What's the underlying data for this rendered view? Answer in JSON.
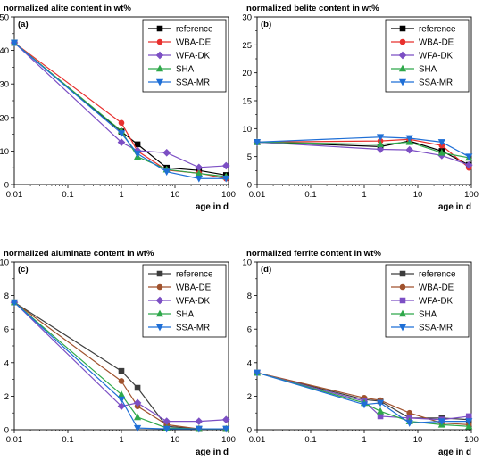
{
  "chart_data": [
    {
      "type": "line",
      "title": "normalized alite content in wt%",
      "panel_label": "(a)",
      "xlabel": "age in d",
      "ylabel": "",
      "xscale": "log",
      "xlim": [
        0.01,
        100
      ],
      "ylim": [
        0,
        50
      ],
      "xticks": [
        "0.01",
        "0.1",
        "1",
        "10",
        "100"
      ],
      "yticks": [
        "0",
        "10",
        "20",
        "30",
        "40",
        "50"
      ],
      "legend_position": "top-right",
      "series": [
        {
          "name": "reference",
          "color": "#000000",
          "marker": "square",
          "x": [
            0.01,
            1,
            2,
            7,
            28,
            90
          ],
          "y": [
            42.3,
            15.8,
            12.0,
            5.0,
            4.2,
            2.8
          ]
        },
        {
          "name": "WBA-DE",
          "color": "#e8302e",
          "marker": "circle",
          "x": [
            0.01,
            1,
            2,
            7,
            28,
            90
          ],
          "y": [
            42.3,
            18.4,
            10.0,
            4.3,
            3.4,
            1.8
          ]
        },
        {
          "name": "WFA-DK",
          "color": "#7c4fc4",
          "marker": "diamond",
          "x": [
            0.01,
            1,
            2,
            7,
            28,
            90
          ],
          "y": [
            42.3,
            12.6,
            10.1,
            9.5,
            5.1,
            5.6
          ]
        },
        {
          "name": "SHA",
          "color": "#2ea84a",
          "marker": "triangle-up",
          "x": [
            0.01,
            1,
            2,
            7,
            28,
            90
          ],
          "y": [
            42.3,
            16.0,
            8.3,
            4.5,
            3.3,
            2.4
          ]
        },
        {
          "name": "SSA-MR",
          "color": "#1f6fd6",
          "marker": "triangle-down",
          "x": [
            0.01,
            1,
            2,
            7,
            28,
            90
          ],
          "y": [
            42.3,
            15.3,
            9.2,
            3.8,
            1.8,
            1.8
          ]
        }
      ]
    },
    {
      "type": "line",
      "title": "normalized belite content in wt%",
      "panel_label": "(b)",
      "xlabel": "age in d",
      "ylabel": "",
      "xscale": "log",
      "xlim": [
        0.01,
        100
      ],
      "ylim": [
        0,
        30
      ],
      "xticks": [
        "0.01",
        "0.1",
        "1",
        "10",
        "100"
      ],
      "yticks": [
        "0",
        "5",
        "10",
        "15",
        "20",
        "25",
        "30"
      ],
      "legend_position": "top-right",
      "series": [
        {
          "name": "reference",
          "color": "#000000",
          "marker": "square",
          "x": [
            0.01,
            2,
            7,
            28,
            90
          ],
          "y": [
            7.6,
            6.8,
            7.8,
            6.0,
            3.5
          ]
        },
        {
          "name": "WBA-DE",
          "color": "#e8302e",
          "marker": "circle",
          "x": [
            0.01,
            2,
            7,
            28,
            90
          ],
          "y": [
            7.6,
            7.8,
            8.1,
            7.0,
            3.0
          ]
        },
        {
          "name": "WFA-DK",
          "color": "#7c4fc4",
          "marker": "diamond",
          "x": [
            0.01,
            2,
            7,
            28,
            90
          ],
          "y": [
            7.6,
            6.3,
            6.2,
            5.2,
            3.5
          ]
        },
        {
          "name": "SHA",
          "color": "#2ea84a",
          "marker": "triangle-up",
          "x": [
            0.01,
            2,
            7,
            28,
            90
          ],
          "y": [
            7.6,
            7.2,
            7.6,
            5.7,
            4.8
          ]
        },
        {
          "name": "SSA-MR",
          "color": "#1f6fd6",
          "marker": "triangle-down",
          "x": [
            0.01,
            2,
            7,
            28,
            90
          ],
          "y": [
            7.6,
            8.5,
            8.3,
            7.6,
            5.0
          ]
        }
      ]
    },
    {
      "type": "line",
      "title": "normalized aluminate content in wt%",
      "panel_label": "(c)",
      "xlabel": "age in d",
      "ylabel": "",
      "xscale": "log",
      "xlim": [
        0.01,
        100
      ],
      "ylim": [
        0,
        10
      ],
      "xticks": [
        "0.01",
        "0.1",
        "1",
        "10",
        "100"
      ],
      "yticks": [
        "0",
        "2",
        "4",
        "6",
        "8",
        "10"
      ],
      "legend_position": "top-right",
      "series": [
        {
          "name": "reference",
          "color": "#3d3d3d",
          "marker": "square",
          "x": [
            0.01,
            1,
            2,
            7,
            28,
            90
          ],
          "y": [
            7.6,
            3.5,
            2.5,
            0.2,
            0.05,
            0.05
          ]
        },
        {
          "name": "WBA-DE",
          "color": "#a0522d",
          "marker": "circle",
          "x": [
            0.01,
            1,
            2,
            7,
            28,
            90
          ],
          "y": [
            7.6,
            2.9,
            1.4,
            0.3,
            0.05,
            0.05
          ]
        },
        {
          "name": "WFA-DK",
          "color": "#7c4fc4",
          "marker": "diamond",
          "x": [
            0.01,
            1,
            2,
            7,
            28,
            90
          ],
          "y": [
            7.6,
            1.4,
            1.6,
            0.5,
            0.5,
            0.6
          ]
        },
        {
          "name": "SHA",
          "color": "#2ea84a",
          "marker": "triangle-up",
          "x": [
            0.01,
            1,
            2,
            7,
            28,
            90
          ],
          "y": [
            7.6,
            2.1,
            0.75,
            0.1,
            0.05,
            0.05
          ]
        },
        {
          "name": "SSA-MR",
          "color": "#1f6fd6",
          "marker": "triangle-down",
          "x": [
            0.01,
            1,
            2,
            7,
            28,
            90
          ],
          "y": [
            7.6,
            1.8,
            0.1,
            0.05,
            0.05,
            0.05
          ]
        }
      ]
    },
    {
      "type": "line",
      "title": "normalized ferrite content in wt%",
      "panel_label": "(d)",
      "xlabel": "age in d",
      "ylabel": "",
      "xscale": "log",
      "xlim": [
        0.01,
        100
      ],
      "ylim": [
        0,
        10
      ],
      "xticks": [
        "0.01",
        "0.1",
        "1",
        "10",
        "100"
      ],
      "yticks": [
        "0",
        "2",
        "4",
        "6",
        "8",
        "10"
      ],
      "legend_position": "top-right",
      "series": [
        {
          "name": "reference",
          "color": "#3d3d3d",
          "marker": "square",
          "x": [
            0.01,
            1,
            2,
            7,
            28,
            90
          ],
          "y": [
            3.4,
            1.8,
            1.7,
            0.7,
            0.7,
            0.6
          ]
        },
        {
          "name": "WBA-DE",
          "color": "#a0522d",
          "marker": "circle",
          "x": [
            0.01,
            1,
            2,
            7,
            28,
            90
          ],
          "y": [
            3.4,
            1.9,
            1.75,
            1.0,
            0.4,
            0.3
          ]
        },
        {
          "name": "WFA-DK",
          "color": "#7c4fc4",
          "marker": "square",
          "x": [
            0.01,
            1,
            2,
            7,
            28,
            90
          ],
          "y": [
            3.4,
            1.7,
            0.8,
            0.7,
            0.6,
            0.8
          ]
        },
        {
          "name": "SHA",
          "color": "#2ea84a",
          "marker": "triangle-up",
          "x": [
            0.01,
            1,
            2,
            7,
            28,
            90
          ],
          "y": [
            3.4,
            1.6,
            1.1,
            0.5,
            0.3,
            0.2
          ]
        },
        {
          "name": "SSA-MR",
          "color": "#1f6fd6",
          "marker": "triangle-down",
          "x": [
            0.01,
            1,
            2,
            7,
            28,
            90
          ],
          "y": [
            3.4,
            1.5,
            1.6,
            0.4,
            0.5,
            0.5
          ]
        }
      ]
    }
  ]
}
